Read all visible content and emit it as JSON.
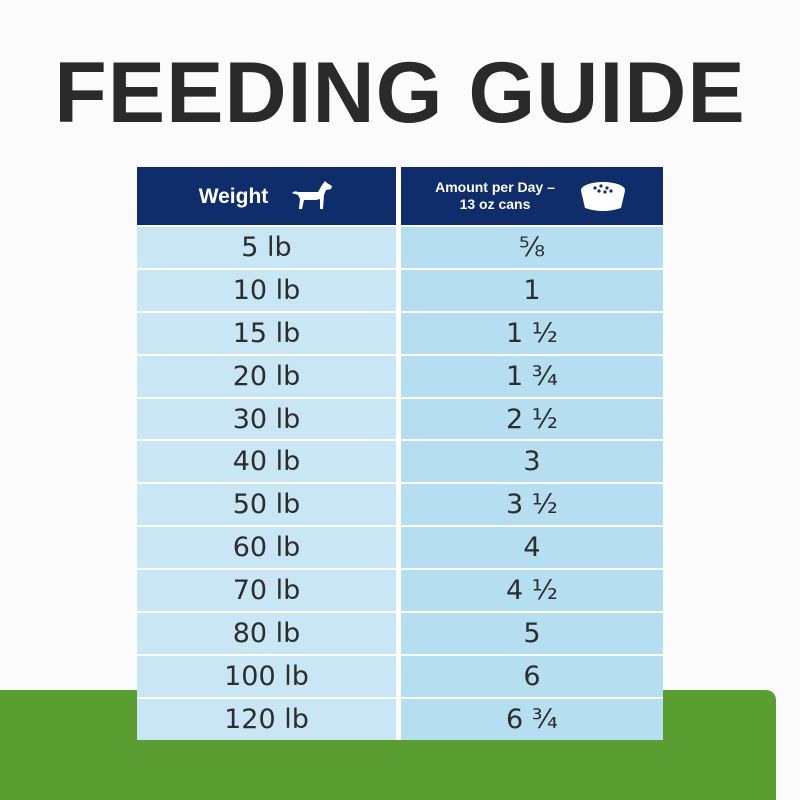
{
  "header": {
    "title": "FEEDING GUIDE"
  },
  "table": {
    "columns": [
      {
        "lines": [
          "Weight"
        ]
      },
      {
        "lines": [
          "Amount per Day –",
          "13 oz cans"
        ]
      }
    ],
    "rows": [
      [
        "5 lb",
        "⅝"
      ],
      [
        "10 lb",
        "1"
      ],
      [
        "15 lb",
        "1 ½"
      ],
      [
        "20 lb",
        "1 ¾"
      ],
      [
        "30 lb",
        "2 ½"
      ],
      [
        "40 lb",
        "3"
      ],
      [
        "50 lb",
        "3 ½"
      ],
      [
        "60 lb",
        "4"
      ],
      [
        "70 lb",
        "4 ½"
      ],
      [
        "80 lb",
        "5"
      ],
      [
        "100 lb",
        "6"
      ],
      [
        "120 lb",
        "6 ¾"
      ]
    ]
  }
}
